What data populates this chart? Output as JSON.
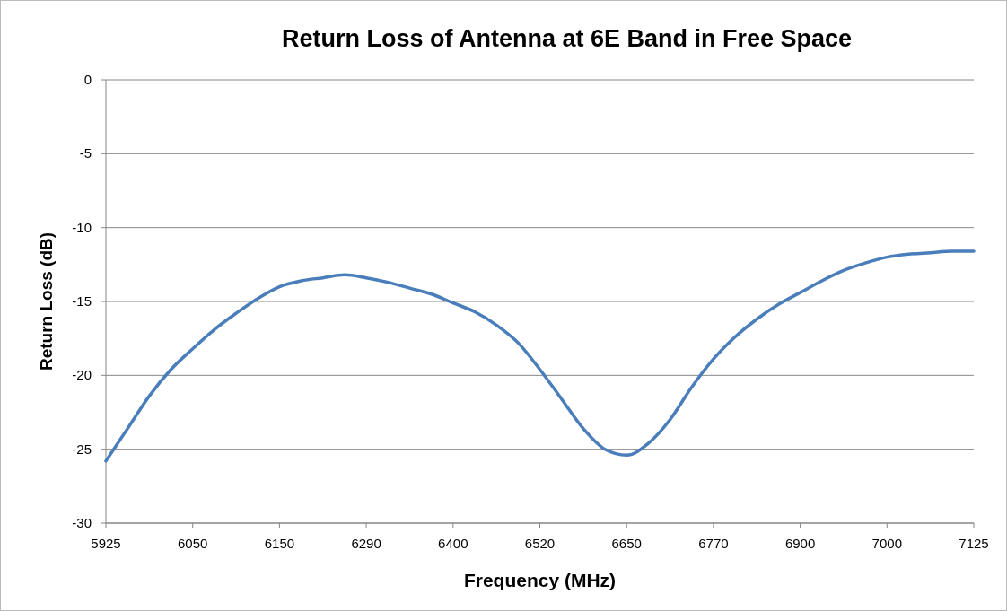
{
  "chart_data": {
    "type": "line",
    "title": "Return Loss of Antenna at 6E Band in Free Space",
    "xlabel": "Frequency  (MHz)",
    "ylabel": "Return Loss (dB)",
    "categories": [
      "5925",
      null,
      null,
      null,
      "6050",
      null,
      null,
      null,
      "6150",
      null,
      null,
      null,
      "6290",
      null,
      null,
      null,
      "6400",
      null,
      null,
      null,
      "6520",
      null,
      null,
      null,
      "6650",
      null,
      null,
      null,
      "6770",
      null,
      null,
      null,
      "6900",
      null,
      null,
      null,
      "7000",
      null,
      null,
      null,
      "7125"
    ],
    "series": [
      {
        "color": "#4a7ebb",
        "values": [
          -25.8,
          -23.6,
          -21.4,
          -19.6,
          -18.2,
          -16.9,
          -15.8,
          -14.8,
          -14.0,
          -13.6,
          -13.4,
          -13.2,
          -13.4,
          -13.7,
          -14.1,
          -14.5,
          -15.1,
          -15.7,
          -16.6,
          -17.8,
          -19.6,
          -21.6,
          -23.6,
          -25.0,
          -25.4,
          -24.6,
          -23.0,
          -20.8,
          -18.9,
          -17.4,
          -16.2,
          -15.2,
          -14.4,
          -13.6,
          -12.9,
          -12.4,
          -12.0,
          -11.8,
          -11.7,
          -11.6,
          -11.6
        ]
      }
    ],
    "ylim": [
      -30,
      0
    ],
    "yticks": [
      -30,
      -25,
      -20,
      -15,
      -10,
      -5,
      0
    ],
    "grid": "y",
    "marker": "none",
    "line_style": "solid"
  }
}
